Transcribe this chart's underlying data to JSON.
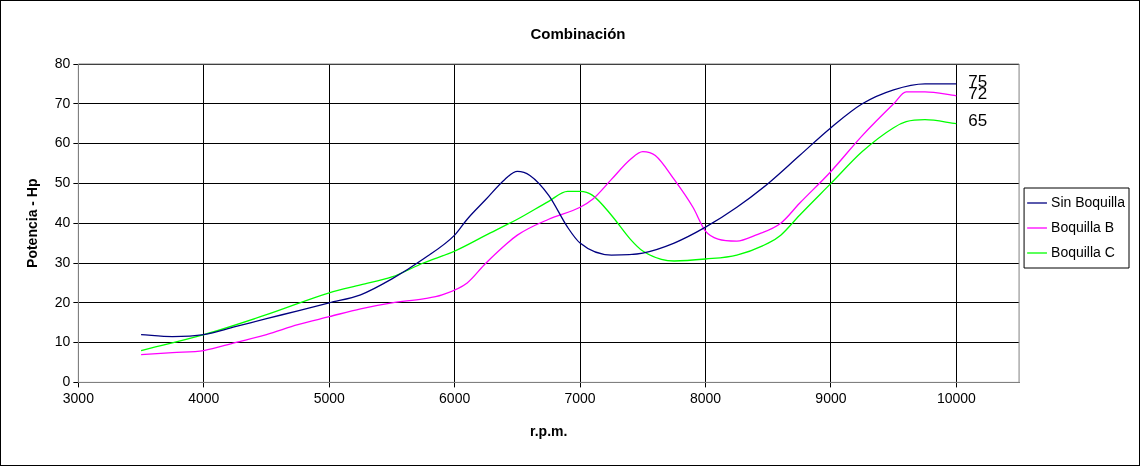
{
  "chart_data": {
    "type": "line",
    "title": "Combinación",
    "xlabel": "r.p.m.",
    "ylabel": "Potencia - Hp",
    "xlim": [
      3000,
      10500
    ],
    "xticks": [
      3000,
      4000,
      5000,
      6000,
      7000,
      8000,
      9000,
      10000
    ],
    "ylim": [
      0,
      80
    ],
    "yticks": [
      0,
      10,
      20,
      30,
      40,
      50,
      60,
      70,
      80
    ],
    "grid": true,
    "legend": "right",
    "marker": "none",
    "line_style": "solid",
    "series": [
      {
        "name": "Sin Boquilla",
        "color": "#000080",
        "x": [
          3500,
          3750,
          4000,
          4250,
          4500,
          4750,
          5000,
          5250,
          5500,
          5750,
          6000,
          6100,
          6250,
          6400,
          6500,
          6600,
          6750,
          6900,
          7000,
          7250,
          7500,
          7750,
          8000,
          8250,
          8500,
          8750,
          9000,
          9250,
          9500,
          9750,
          10000
        ],
        "values": [
          12,
          11.5,
          12,
          14,
          16,
          18,
          20,
          22,
          26,
          31,
          37,
          41,
          46,
          51,
          53,
          52,
          47,
          39,
          35,
          32,
          32.5,
          35,
          39,
          44,
          50,
          57,
          64,
          70,
          73.5,
          75,
          75
        ],
        "value_labels": [
          null,
          null,
          null,
          null,
          null,
          null,
          null,
          null,
          null,
          null,
          null,
          null,
          null,
          null,
          null,
          null,
          null,
          null,
          null,
          null,
          null,
          null,
          null,
          null,
          null,
          null,
          null,
          null,
          null,
          null,
          "75"
        ]
      },
      {
        "name": "Boquilla B",
        "color": "#ff00ff",
        "x": [
          3500,
          3750,
          4000,
          4250,
          4500,
          4750,
          5000,
          5250,
          5500,
          5750,
          5900,
          6100,
          6250,
          6500,
          6750,
          7000,
          7100,
          7250,
          7400,
          7500,
          7600,
          7750,
          7900,
          8000,
          8100,
          8250,
          8400,
          8600,
          8750,
          9000,
          9250,
          9500,
          9600,
          9750,
          10000
        ],
        "values": [
          7,
          7.5,
          8,
          10,
          12,
          14.5,
          16.5,
          18.5,
          20,
          21,
          22,
          25,
          30,
          37,
          41,
          44,
          46,
          51,
          56,
          58,
          57,
          51,
          44,
          38,
          36,
          35.5,
          37,
          40,
          45,
          53,
          62,
          70,
          73,
          73,
          72
        ],
        "value_labels": [
          null,
          null,
          null,
          null,
          null,
          null,
          null,
          null,
          null,
          null,
          null,
          null,
          null,
          null,
          null,
          null,
          null,
          null,
          null,
          null,
          null,
          null,
          null,
          null,
          null,
          null,
          null,
          null,
          null,
          null,
          null,
          null,
          null,
          null,
          "72"
        ]
      },
      {
        "name": "Boquilla C",
        "color": "#00ff00",
        "x": [
          3500,
          4000,
          4500,
          5000,
          5250,
          5500,
          5750,
          6000,
          6250,
          6500,
          6750,
          6900,
          7000,
          7100,
          7250,
          7400,
          7500,
          7750,
          8000,
          8250,
          8500,
          8600,
          8750,
          9000,
          9250,
          9500,
          9600,
          9750,
          10000
        ],
        "values": [
          8,
          12,
          17,
          22.5,
          24.5,
          26.5,
          30,
          33,
          37,
          41,
          45.5,
          48,
          48,
          47,
          42,
          36,
          33,
          30.5,
          31,
          32,
          35,
          37,
          42,
          50,
          58,
          64,
          65.5,
          66,
          65
        ],
        "value_labels": [
          null,
          null,
          null,
          null,
          null,
          null,
          null,
          null,
          null,
          null,
          null,
          null,
          null,
          null,
          null,
          null,
          null,
          null,
          null,
          null,
          null,
          null,
          null,
          null,
          null,
          null,
          null,
          null,
          "65"
        ]
      }
    ]
  }
}
